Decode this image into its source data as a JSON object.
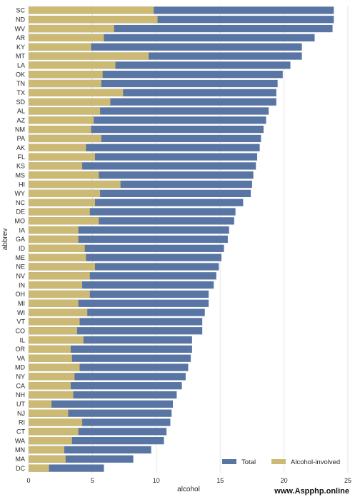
{
  "chart_data": {
    "type": "bar",
    "orientation": "horizontal",
    "xlabel": "alcohol",
    "ylabel": "abbrev",
    "xlim": [
      0,
      25
    ],
    "xticks": [
      0,
      5,
      10,
      15,
      20,
      25
    ],
    "grid": true,
    "legend_position": "bottom-right",
    "categories": [
      "SC",
      "ND",
      "WV",
      "AR",
      "KY",
      "MT",
      "LA",
      "OK",
      "TN",
      "TX",
      "SD",
      "AL",
      "AZ",
      "NM",
      "PA",
      "AK",
      "FL",
      "KS",
      "MS",
      "HI",
      "WY",
      "NC",
      "DE",
      "MO",
      "IA",
      "GA",
      "ID",
      "ME",
      "NE",
      "NV",
      "IN",
      "OH",
      "MI",
      "WI",
      "VT",
      "CO",
      "IL",
      "OR",
      "VA",
      "MD",
      "NY",
      "CA",
      "NH",
      "UT",
      "NJ",
      "RI",
      "CT",
      "WA",
      "MN",
      "MA",
      "DC"
    ],
    "series": [
      {
        "name": "Total",
        "color": "#5875a4",
        "values": [
          23.9,
          23.9,
          23.8,
          22.4,
          21.4,
          21.4,
          20.5,
          19.9,
          19.5,
          19.4,
          19.4,
          18.8,
          18.6,
          18.4,
          18.2,
          18.1,
          17.9,
          17.8,
          17.6,
          17.5,
          17.4,
          16.8,
          16.2,
          16.1,
          15.7,
          15.6,
          15.3,
          15.1,
          14.9,
          14.7,
          14.5,
          14.1,
          14.1,
          13.8,
          13.6,
          13.6,
          12.8,
          12.8,
          12.7,
          12.5,
          12.3,
          12.0,
          11.6,
          11.3,
          11.2,
          11.1,
          10.8,
          10.6,
          9.6,
          8.2,
          5.9
        ]
      },
      {
        "name": "Alcohol-involved",
        "color": "#ccb974",
        "values": [
          9.8,
          10.1,
          6.7,
          5.9,
          4.9,
          9.4,
          6.8,
          5.8,
          5.7,
          7.4,
          6.4,
          5.6,
          5.1,
          4.9,
          5.7,
          4.5,
          5.2,
          4.2,
          5.5,
          7.2,
          5.6,
          5.2,
          4.8,
          5.5,
          3.9,
          3.9,
          4.4,
          4.5,
          5.2,
          4.8,
          4.2,
          4.8,
          3.9,
          4.6,
          4.0,
          3.8,
          4.3,
          3.3,
          3.4,
          4.0,
          3.6,
          3.3,
          3.5,
          1.8,
          3.1,
          4.2,
          3.9,
          3.4,
          2.8,
          2.9,
          1.6
        ]
      }
    ]
  },
  "watermark": "www.Aspphp.online"
}
